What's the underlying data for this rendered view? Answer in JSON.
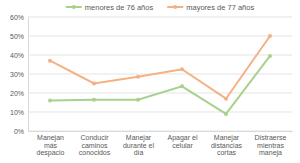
{
  "chart_data": {
    "type": "line",
    "categories": [
      "Manejan más despacio",
      "Conducir caminos conocidos",
      "Manejar durante el día",
      "Apagar el celular",
      "Manejar distancias cortas",
      "Distraerse mientras maneja"
    ],
    "series": [
      {
        "name": "menores de 76 años",
        "color": "#a9d18e",
        "marker": "circle",
        "values": [
          16,
          16.5,
          16.5,
          23.5,
          9,
          39.5
        ]
      },
      {
        "name": "mayores de 77 años",
        "color": "#f4b183",
        "marker": "circle",
        "values": [
          37,
          25,
          28.5,
          32.5,
          17,
          50
        ]
      }
    ],
    "ylim": [
      0,
      60
    ],
    "yticks": [
      {
        "value": 0,
        "label": "0%"
      },
      {
        "value": 10,
        "label": "10%"
      },
      {
        "value": 20,
        "label": "20%"
      },
      {
        "value": 30,
        "label": "30%"
      },
      {
        "value": 40,
        "label": "40%"
      },
      {
        "value": 50,
        "label": "50%"
      },
      {
        "value": 60,
        "label": "60%"
      }
    ],
    "grid": true,
    "legend": "top"
  }
}
